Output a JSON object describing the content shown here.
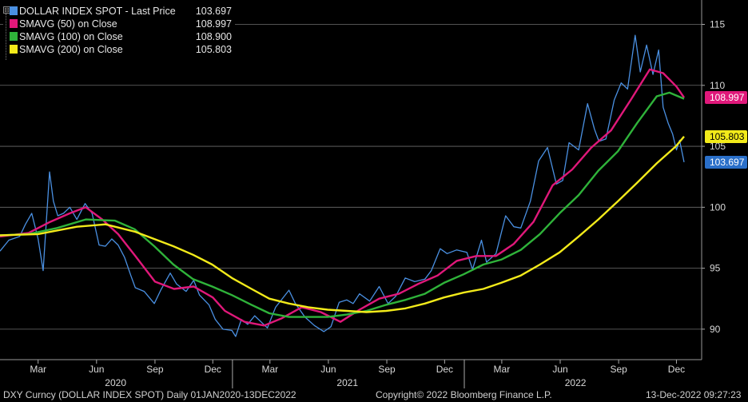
{
  "legend": {
    "toggle": "⊟",
    "items": [
      {
        "label": "DOLLAR INDEX SPOT - Last Price",
        "value": "103.697",
        "color": "#4a90e2"
      },
      {
        "label": "SMAVG (50)  on Close",
        "value": "108.997",
        "color": "#e0187a"
      },
      {
        "label": "SMAVG (100)  on Close",
        "value": "108.900",
        "color": "#2fb33a"
      },
      {
        "label": "SMAVG (200)  on Close",
        "value": "105.803",
        "color": "#f2ea1a"
      }
    ]
  },
  "footer": {
    "ticker": "DXY Curncy (DOLLAR INDEX SPOT)  Daily 01JAN2020-13DEC2022",
    "copyright": "Copyright© 2022 Bloomberg Finance L.P.",
    "timestamp": "13-Dec-2022 09:27:23"
  },
  "price_tags": [
    {
      "value": "108.997",
      "series": "sma50",
      "bg": "#e0187a",
      "fg": "#ffffff"
    },
    {
      "value": "105.803",
      "series": "sma200",
      "bg": "#f2ea1a",
      "fg": "#000000"
    },
    {
      "value": "103.697",
      "series": "price",
      "bg": "#2a6fc9",
      "fg": "#ffffff"
    }
  ],
  "chart_data": {
    "type": "line",
    "title": "",
    "xlabel": "",
    "ylabel": "",
    "ylim": [
      87.5,
      117
    ],
    "y_ticks": [
      90,
      95,
      100,
      105,
      110,
      115
    ],
    "x_month_labels": [
      "Mar",
      "Jun",
      "Sep",
      "Dec",
      "Mar",
      "Jun",
      "Sep",
      "Dec",
      "Mar",
      "Jun",
      "Sep",
      "Dec"
    ],
    "x_year_labels": [
      "2020",
      "2021",
      "2022"
    ],
    "x_start": "2020-01-01",
    "x_end": "2022-12-13",
    "grid": true,
    "legend_position": "top-left",
    "series": [
      {
        "name": "DOLLAR INDEX SPOT - Last Price",
        "color": "#4a90e2",
        "points": [
          [
            "2020-01-01",
            96.4
          ],
          [
            "2020-01-15",
            97.3
          ],
          [
            "2020-02-01",
            97.6
          ],
          [
            "2020-02-10",
            98.6
          ],
          [
            "2020-02-20",
            99.5
          ],
          [
            "2020-03-01",
            97.4
          ],
          [
            "2020-03-09",
            94.8
          ],
          [
            "2020-03-19",
            102.9
          ],
          [
            "2020-03-25",
            100.5
          ],
          [
            "2020-04-01",
            99.3
          ],
          [
            "2020-04-10",
            99.5
          ],
          [
            "2020-04-20",
            100.0
          ],
          [
            "2020-05-01",
            99.0
          ],
          [
            "2020-05-14",
            100.3
          ],
          [
            "2020-05-25",
            99.5
          ],
          [
            "2020-06-05",
            96.9
          ],
          [
            "2020-06-15",
            96.8
          ],
          [
            "2020-06-25",
            97.4
          ],
          [
            "2020-07-05",
            96.9
          ],
          [
            "2020-07-15",
            95.9
          ],
          [
            "2020-07-25",
            94.4
          ],
          [
            "2020-08-01",
            93.4
          ],
          [
            "2020-08-15",
            93.1
          ],
          [
            "2020-08-31",
            92.1
          ],
          [
            "2020-09-10",
            93.2
          ],
          [
            "2020-09-25",
            94.6
          ],
          [
            "2020-10-05",
            93.7
          ],
          [
            "2020-10-20",
            93.1
          ],
          [
            "2020-11-01",
            94.0
          ],
          [
            "2020-11-10",
            92.8
          ],
          [
            "2020-11-25",
            92.0
          ],
          [
            "2020-12-05",
            90.8
          ],
          [
            "2020-12-17",
            90.0
          ],
          [
            "2020-12-31",
            89.9
          ],
          [
            "2021-01-06",
            89.4
          ],
          [
            "2021-01-15",
            90.8
          ],
          [
            "2021-01-25",
            90.4
          ],
          [
            "2021-02-05",
            91.1
          ],
          [
            "2021-02-25",
            90.1
          ],
          [
            "2021-03-10",
            91.8
          ],
          [
            "2021-03-31",
            93.2
          ],
          [
            "2021-04-10",
            92.1
          ],
          [
            "2021-04-25",
            91.0
          ],
          [
            "2021-05-10",
            90.3
          ],
          [
            "2021-05-25",
            89.8
          ],
          [
            "2021-06-05",
            90.2
          ],
          [
            "2021-06-18",
            92.2
          ],
          [
            "2021-06-30",
            92.4
          ],
          [
            "2021-07-10",
            92.1
          ],
          [
            "2021-07-20",
            92.9
          ],
          [
            "2021-08-05",
            92.3
          ],
          [
            "2021-08-20",
            93.5
          ],
          [
            "2021-09-03",
            92.1
          ],
          [
            "2021-09-15",
            92.7
          ],
          [
            "2021-09-30",
            94.2
          ],
          [
            "2021-10-15",
            93.9
          ],
          [
            "2021-10-31",
            94.1
          ],
          [
            "2021-11-10",
            94.8
          ],
          [
            "2021-11-24",
            96.6
          ],
          [
            "2021-12-05",
            96.2
          ],
          [
            "2021-12-20",
            96.5
          ],
          [
            "2022-01-05",
            96.3
          ],
          [
            "2022-01-14",
            94.9
          ],
          [
            "2022-01-28",
            97.3
          ],
          [
            "2022-02-05",
            95.5
          ],
          [
            "2022-02-20",
            96.2
          ],
          [
            "2022-03-07",
            99.3
          ],
          [
            "2022-03-20",
            98.4
          ],
          [
            "2022-03-31",
            98.3
          ],
          [
            "2022-04-15",
            100.5
          ],
          [
            "2022-04-28",
            103.8
          ],
          [
            "2022-05-12",
            104.9
          ],
          [
            "2022-05-26",
            101.9
          ],
          [
            "2022-06-05",
            102.2
          ],
          [
            "2022-06-15",
            105.3
          ],
          [
            "2022-06-30",
            104.7
          ],
          [
            "2022-07-14",
            108.5
          ],
          [
            "2022-07-25",
            106.4
          ],
          [
            "2022-08-01",
            105.4
          ],
          [
            "2022-08-12",
            105.6
          ],
          [
            "2022-08-25",
            108.8
          ],
          [
            "2022-09-05",
            110.2
          ],
          [
            "2022-09-15",
            109.7
          ],
          [
            "2022-09-27",
            114.1
          ],
          [
            "2022-10-05",
            111.1
          ],
          [
            "2022-10-15",
            113.3
          ],
          [
            "2022-10-25",
            110.9
          ],
          [
            "2022-11-03",
            112.9
          ],
          [
            "2022-11-10",
            108.2
          ],
          [
            "2022-11-18",
            106.9
          ],
          [
            "2022-11-25",
            106.0
          ],
          [
            "2022-12-01",
            104.7
          ],
          [
            "2022-12-06",
            105.5
          ],
          [
            "2022-12-13",
            103.7
          ]
        ]
      },
      {
        "name": "SMAVG (50)  on Close",
        "color": "#e0187a",
        "points": [
          [
            "2020-01-01",
            97.6
          ],
          [
            "2020-02-15",
            97.9
          ],
          [
            "2020-03-20",
            98.8
          ],
          [
            "2020-04-20",
            99.5
          ],
          [
            "2020-05-15",
            100.0
          ],
          [
            "2020-06-10",
            99.0
          ],
          [
            "2020-07-05",
            97.8
          ],
          [
            "2020-08-01",
            96.0
          ],
          [
            "2020-09-01",
            93.9
          ],
          [
            "2020-10-01",
            93.3
          ],
          [
            "2020-11-01",
            93.5
          ],
          [
            "2020-12-01",
            92.6
          ],
          [
            "2020-12-20",
            91.5
          ],
          [
            "2021-01-20",
            90.6
          ],
          [
            "2021-02-20",
            90.3
          ],
          [
            "2021-03-20",
            90.9
          ],
          [
            "2021-04-20",
            91.8
          ],
          [
            "2021-05-20",
            91.4
          ],
          [
            "2021-06-20",
            90.6
          ],
          [
            "2021-07-20",
            91.6
          ],
          [
            "2021-08-20",
            92.5
          ],
          [
            "2021-09-20",
            92.9
          ],
          [
            "2021-10-20",
            93.7
          ],
          [
            "2021-11-20",
            94.4
          ],
          [
            "2021-12-20",
            95.6
          ],
          [
            "2022-01-20",
            96.0
          ],
          [
            "2022-02-20",
            96.0
          ],
          [
            "2022-03-20",
            97.0
          ],
          [
            "2022-04-20",
            98.8
          ],
          [
            "2022-05-20",
            101.8
          ],
          [
            "2022-06-20",
            103.1
          ],
          [
            "2022-07-20",
            104.9
          ],
          [
            "2022-08-20",
            106.3
          ],
          [
            "2022-09-20",
            108.8
          ],
          [
            "2022-10-20",
            111.3
          ],
          [
            "2022-11-10",
            111.0
          ],
          [
            "2022-12-01",
            109.9
          ],
          [
            "2022-12-13",
            108.997
          ]
        ]
      },
      {
        "name": "SMAVG (100)  on Close",
        "color": "#2fb33a",
        "points": [
          [
            "2020-01-01",
            97.7
          ],
          [
            "2020-02-15",
            97.8
          ],
          [
            "2020-03-31",
            98.3
          ],
          [
            "2020-05-15",
            99.0
          ],
          [
            "2020-06-30",
            98.9
          ],
          [
            "2020-07-31",
            98.2
          ],
          [
            "2020-08-31",
            96.8
          ],
          [
            "2020-09-30",
            95.3
          ],
          [
            "2020-10-31",
            94.1
          ],
          [
            "2020-11-30",
            93.5
          ],
          [
            "2020-12-31",
            92.8
          ],
          [
            "2021-01-31",
            92.0
          ],
          [
            "2021-02-28",
            91.3
          ],
          [
            "2021-03-31",
            91.0
          ],
          [
            "2021-04-30",
            91.0
          ],
          [
            "2021-05-31",
            91.0
          ],
          [
            "2021-06-30",
            91.2
          ],
          [
            "2021-07-31",
            91.5
          ],
          [
            "2021-08-31",
            92.0
          ],
          [
            "2021-09-30",
            92.4
          ],
          [
            "2021-10-31",
            92.9
          ],
          [
            "2021-11-30",
            93.8
          ],
          [
            "2021-12-31",
            94.5
          ],
          [
            "2022-01-31",
            95.3
          ],
          [
            "2022-02-28",
            95.7
          ],
          [
            "2022-03-31",
            96.5
          ],
          [
            "2022-04-30",
            97.8
          ],
          [
            "2022-05-31",
            99.5
          ],
          [
            "2022-06-30",
            101.0
          ],
          [
            "2022-07-31",
            103.0
          ],
          [
            "2022-08-31",
            104.6
          ],
          [
            "2022-09-30",
            106.9
          ],
          [
            "2022-10-31",
            109.1
          ],
          [
            "2022-11-20",
            109.4
          ],
          [
            "2022-12-13",
            108.9
          ]
        ]
      },
      {
        "name": "SMAVG (200)  on Close",
        "color": "#f2ea1a",
        "points": [
          [
            "2020-01-01",
            97.7
          ],
          [
            "2020-03-01",
            97.8
          ],
          [
            "2020-05-01",
            98.4
          ],
          [
            "2020-06-15",
            98.6
          ],
          [
            "2020-07-31",
            98.0
          ],
          [
            "2020-09-30",
            96.8
          ],
          [
            "2020-10-31",
            96.1
          ],
          [
            "2020-11-30",
            95.3
          ],
          [
            "2020-12-31",
            94.2
          ],
          [
            "2021-01-31",
            93.3
          ],
          [
            "2021-02-28",
            92.5
          ],
          [
            "2021-03-31",
            92.1
          ],
          [
            "2021-04-30",
            91.8
          ],
          [
            "2021-05-31",
            91.6
          ],
          [
            "2021-06-30",
            91.5
          ],
          [
            "2021-07-31",
            91.4
          ],
          [
            "2021-08-31",
            91.5
          ],
          [
            "2021-09-30",
            91.7
          ],
          [
            "2021-10-31",
            92.1
          ],
          [
            "2021-11-30",
            92.6
          ],
          [
            "2021-12-31",
            93.0
          ],
          [
            "2022-01-31",
            93.3
          ],
          [
            "2022-02-28",
            93.8
          ],
          [
            "2022-03-31",
            94.4
          ],
          [
            "2022-04-30",
            95.3
          ],
          [
            "2022-05-31",
            96.3
          ],
          [
            "2022-06-30",
            97.6
          ],
          [
            "2022-07-31",
            99.0
          ],
          [
            "2022-08-31",
            100.5
          ],
          [
            "2022-09-30",
            102.0
          ],
          [
            "2022-10-31",
            103.6
          ],
          [
            "2022-11-30",
            105.0
          ],
          [
            "2022-12-13",
            105.803
          ]
        ]
      }
    ]
  }
}
